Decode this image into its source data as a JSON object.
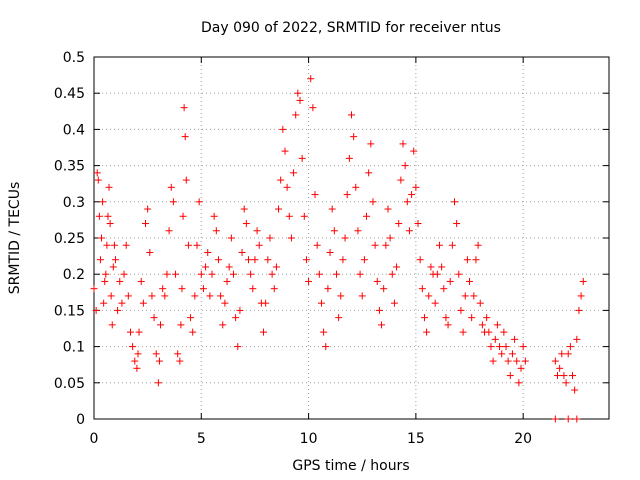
{
  "chart_data": {
    "type": "scatter",
    "title": "Day 090 of 2022, SRMTID for receiver ntus",
    "xlabel": "GPS time / hours",
    "ylabel": "SRMTID / TECUs",
    "xlim": [
      0,
      24
    ],
    "ylim": [
      0,
      0.5
    ],
    "x_ticks": [
      0,
      5,
      10,
      15,
      20
    ],
    "x_tick_labels": [
      "0",
      "5",
      "10",
      "15",
      "20"
    ],
    "y_ticks": [
      0,
      0.05,
      0.1,
      0.15,
      0.2,
      0.25,
      0.3,
      0.35,
      0.4,
      0.45,
      0.5
    ],
    "y_tick_labels": [
      "0",
      "0.05",
      "0.1",
      "0.15",
      "0.2",
      "0.25",
      "0.3",
      "0.35",
      "0.4",
      "0.45",
      "0.5"
    ],
    "grid": true,
    "marker": "plus",
    "color": "#ff0000",
    "series": [
      {
        "values": [
          [
            0.0,
            0.18
          ],
          [
            0.1,
            0.15
          ],
          [
            0.15,
            0.34
          ],
          [
            0.2,
            0.33
          ],
          [
            0.25,
            0.28
          ],
          [
            0.3,
            0.22
          ],
          [
            0.35,
            0.25
          ],
          [
            0.4,
            0.3
          ],
          [
            0.45,
            0.16
          ],
          [
            0.5,
            0.19
          ],
          [
            0.55,
            0.2
          ],
          [
            0.6,
            0.24
          ],
          [
            0.65,
            0.28
          ],
          [
            0.7,
            0.32
          ],
          [
            0.75,
            0.27
          ],
          [
            0.8,
            0.17
          ],
          [
            0.85,
            0.13
          ],
          [
            0.9,
            0.21
          ],
          [
            0.95,
            0.24
          ],
          [
            1.0,
            0.22
          ],
          [
            1.1,
            0.15
          ],
          [
            1.2,
            0.19
          ],
          [
            1.3,
            0.16
          ],
          [
            1.4,
            0.2
          ],
          [
            1.5,
            0.24
          ],
          [
            1.6,
            0.17
          ],
          [
            1.7,
            0.12
          ],
          [
            1.8,
            0.1
          ],
          [
            1.9,
            0.08
          ],
          [
            2.0,
            0.07
          ],
          [
            2.05,
            0.09
          ],
          [
            2.1,
            0.12
          ],
          [
            2.2,
            0.19
          ],
          [
            2.3,
            0.16
          ],
          [
            2.4,
            0.27
          ],
          [
            2.5,
            0.29
          ],
          [
            2.6,
            0.23
          ],
          [
            2.7,
            0.17
          ],
          [
            2.8,
            0.14
          ],
          [
            2.9,
            0.09
          ],
          [
            3.0,
            0.05
          ],
          [
            3.05,
            0.08
          ],
          [
            3.1,
            0.13
          ],
          [
            3.2,
            0.18
          ],
          [
            3.3,
            0.17
          ],
          [
            3.4,
            0.2
          ],
          [
            3.5,
            0.26
          ],
          [
            3.6,
            0.32
          ],
          [
            3.7,
            0.3
          ],
          [
            3.8,
            0.2
          ],
          [
            3.9,
            0.09
          ],
          [
            4.0,
            0.08
          ],
          [
            4.05,
            0.13
          ],
          [
            4.1,
            0.18
          ],
          [
            4.15,
            0.28
          ],
          [
            4.2,
            0.43
          ],
          [
            4.25,
            0.39
          ],
          [
            4.3,
            0.33
          ],
          [
            4.4,
            0.24
          ],
          [
            4.5,
            0.14
          ],
          [
            4.6,
            0.12
          ],
          [
            4.7,
            0.17
          ],
          [
            4.8,
            0.24
          ],
          [
            4.9,
            0.3
          ],
          [
            5.0,
            0.2
          ],
          [
            5.1,
            0.18
          ],
          [
            5.2,
            0.21
          ],
          [
            5.3,
            0.23
          ],
          [
            5.4,
            0.17
          ],
          [
            5.5,
            0.2
          ],
          [
            5.6,
            0.28
          ],
          [
            5.7,
            0.26
          ],
          [
            5.8,
            0.22
          ],
          [
            5.9,
            0.17
          ],
          [
            6.0,
            0.13
          ],
          [
            6.1,
            0.16
          ],
          [
            6.2,
            0.19
          ],
          [
            6.3,
            0.21
          ],
          [
            6.4,
            0.25
          ],
          [
            6.5,
            0.2
          ],
          [
            6.6,
            0.14
          ],
          [
            6.7,
            0.1
          ],
          [
            6.8,
            0.15
          ],
          [
            6.9,
            0.23
          ],
          [
            7.0,
            0.29
          ],
          [
            7.1,
            0.27
          ],
          [
            7.2,
            0.22
          ],
          [
            7.3,
            0.2
          ],
          [
            7.4,
            0.18
          ],
          [
            7.5,
            0.22
          ],
          [
            7.6,
            0.26
          ],
          [
            7.7,
            0.24
          ],
          [
            7.8,
            0.16
          ],
          [
            7.9,
            0.12
          ],
          [
            8.0,
            0.16
          ],
          [
            8.1,
            0.22
          ],
          [
            8.2,
            0.25
          ],
          [
            8.3,
            0.2
          ],
          [
            8.4,
            0.18
          ],
          [
            8.5,
            0.21
          ],
          [
            8.6,
            0.29
          ],
          [
            8.7,
            0.33
          ],
          [
            8.8,
            0.4
          ],
          [
            8.9,
            0.37
          ],
          [
            9.0,
            0.32
          ],
          [
            9.1,
            0.28
          ],
          [
            9.2,
            0.25
          ],
          [
            9.3,
            0.34
          ],
          [
            9.4,
            0.42
          ],
          [
            9.5,
            0.45
          ],
          [
            9.6,
            0.44
          ],
          [
            9.7,
            0.36
          ],
          [
            9.8,
            0.28
          ],
          [
            9.9,
            0.22
          ],
          [
            10.0,
            0.19
          ],
          [
            10.1,
            0.47
          ],
          [
            10.2,
            0.43
          ],
          [
            10.3,
            0.31
          ],
          [
            10.4,
            0.24
          ],
          [
            10.5,
            0.2
          ],
          [
            10.6,
            0.16
          ],
          [
            10.7,
            0.12
          ],
          [
            10.8,
            0.1
          ],
          [
            10.9,
            0.18
          ],
          [
            11.0,
            0.23
          ],
          [
            11.1,
            0.29
          ],
          [
            11.2,
            0.26
          ],
          [
            11.3,
            0.2
          ],
          [
            11.4,
            0.14
          ],
          [
            11.5,
            0.17
          ],
          [
            11.6,
            0.22
          ],
          [
            11.7,
            0.25
          ],
          [
            11.8,
            0.31
          ],
          [
            11.9,
            0.36
          ],
          [
            12.0,
            0.42
          ],
          [
            12.1,
            0.39
          ],
          [
            12.2,
            0.32
          ],
          [
            12.3,
            0.26
          ],
          [
            12.4,
            0.2
          ],
          [
            12.5,
            0.17
          ],
          [
            12.6,
            0.22
          ],
          [
            12.7,
            0.28
          ],
          [
            12.8,
            0.34
          ],
          [
            12.9,
            0.38
          ],
          [
            13.0,
            0.3
          ],
          [
            13.1,
            0.24
          ],
          [
            13.2,
            0.19
          ],
          [
            13.3,
            0.15
          ],
          [
            13.4,
            0.13
          ],
          [
            13.5,
            0.18
          ],
          [
            13.6,
            0.24
          ],
          [
            13.7,
            0.29
          ],
          [
            13.8,
            0.25
          ],
          [
            13.9,
            0.2
          ],
          [
            14.0,
            0.16
          ],
          [
            14.1,
            0.21
          ],
          [
            14.2,
            0.27
          ],
          [
            14.3,
            0.33
          ],
          [
            14.4,
            0.38
          ],
          [
            14.5,
            0.35
          ],
          [
            14.6,
            0.3
          ],
          [
            14.7,
            0.26
          ],
          [
            14.8,
            0.31
          ],
          [
            14.9,
            0.37
          ],
          [
            15.0,
            0.32
          ],
          [
            15.1,
            0.27
          ],
          [
            15.2,
            0.22
          ],
          [
            15.3,
            0.18
          ],
          [
            15.4,
            0.14
          ],
          [
            15.5,
            0.12
          ],
          [
            15.6,
            0.17
          ],
          [
            15.7,
            0.21
          ],
          [
            15.8,
            0.2
          ],
          [
            15.9,
            0.16
          ],
          [
            16.0,
            0.2
          ],
          [
            16.1,
            0.24
          ],
          [
            16.2,
            0.21
          ],
          [
            16.3,
            0.18
          ],
          [
            16.4,
            0.14
          ],
          [
            16.5,
            0.13
          ],
          [
            16.6,
            0.19
          ],
          [
            16.7,
            0.24
          ],
          [
            16.8,
            0.3
          ],
          [
            16.9,
            0.27
          ],
          [
            17.0,
            0.2
          ],
          [
            17.1,
            0.15
          ],
          [
            17.2,
            0.12
          ],
          [
            17.3,
            0.17
          ],
          [
            17.4,
            0.22
          ],
          [
            17.5,
            0.19
          ],
          [
            17.6,
            0.14
          ],
          [
            17.7,
            0.17
          ],
          [
            17.8,
            0.22
          ],
          [
            17.9,
            0.24
          ],
          [
            18.0,
            0.16
          ],
          [
            18.1,
            0.13
          ],
          [
            18.2,
            0.12
          ],
          [
            18.3,
            0.14
          ],
          [
            18.4,
            0.12
          ],
          [
            18.5,
            0.1
          ],
          [
            18.6,
            0.08
          ],
          [
            18.7,
            0.11
          ],
          [
            18.8,
            0.13
          ],
          [
            18.9,
            0.1
          ],
          [
            19.0,
            0.09
          ],
          [
            19.1,
            0.12
          ],
          [
            19.2,
            0.1
          ],
          [
            19.3,
            0.08
          ],
          [
            19.4,
            0.06
          ],
          [
            19.5,
            0.09
          ],
          [
            19.6,
            0.11
          ],
          [
            19.7,
            0.08
          ],
          [
            19.8,
            0.05
          ],
          [
            19.9,
            0.07
          ],
          [
            20.0,
            0.1
          ],
          [
            20.1,
            0.08
          ],
          [
            21.5,
            0.08
          ],
          [
            21.6,
            0.06
          ],
          [
            21.7,
            0.07
          ],
          [
            21.8,
            0.09
          ],
          [
            21.9,
            0.06
          ],
          [
            22.0,
            0.05
          ],
          [
            22.1,
            0.09
          ],
          [
            22.2,
            0.1
          ],
          [
            22.3,
            0.06
          ],
          [
            22.4,
            0.04
          ],
          [
            22.5,
            0.11
          ],
          [
            22.6,
            0.15
          ],
          [
            22.7,
            0.17
          ],
          [
            22.8,
            0.19
          ],
          [
            21.5,
            0.0
          ],
          [
            22.1,
            0.0
          ],
          [
            22.5,
            0.0
          ]
        ]
      }
    ]
  }
}
